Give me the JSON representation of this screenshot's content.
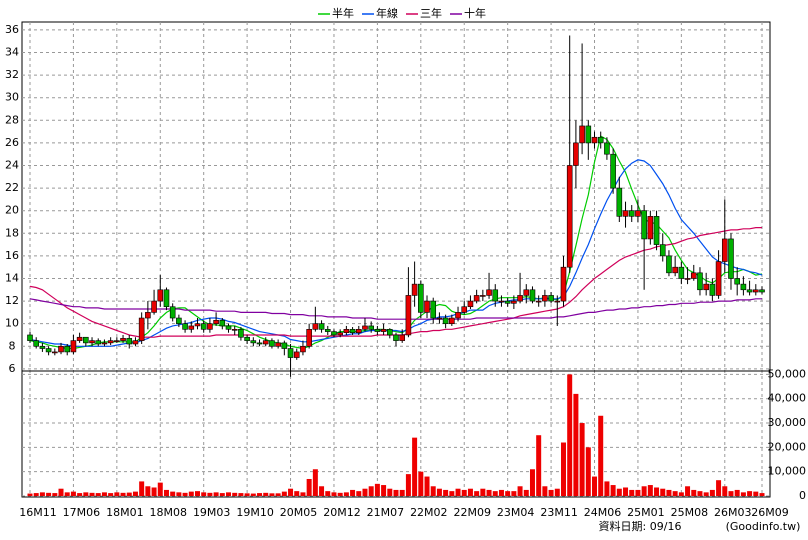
{
  "chart_data": {
    "type": "candlestick",
    "categories": [
      "16M11",
      null,
      null,
      null,
      null,
      null,
      null,
      "17M06",
      null,
      null,
      null,
      null,
      null,
      null,
      "18M01",
      null,
      null,
      null,
      null,
      null,
      null,
      "18M08",
      null,
      null,
      null,
      null,
      null,
      null,
      "19M03",
      null,
      null,
      null,
      null,
      null,
      null,
      "19M10",
      null,
      null,
      null,
      null,
      null,
      null,
      "20M05",
      null,
      null,
      null,
      null,
      null,
      null,
      "20M12",
      null,
      null,
      null,
      null,
      null,
      null,
      "21M07",
      null,
      null,
      null,
      null,
      null,
      null,
      "22M02",
      null,
      null,
      null,
      null,
      null,
      null,
      "22M09",
      null,
      null,
      null,
      null,
      null,
      null,
      "23M04",
      null,
      null,
      null,
      null,
      null,
      null,
      "23M11",
      null,
      null,
      null,
      null,
      null,
      null,
      "24M06",
      null,
      null,
      null,
      null,
      null,
      null,
      "25M01",
      null,
      null,
      null,
      null,
      null,
      null,
      "25M08",
      null,
      null,
      null,
      null,
      null,
      null,
      "26M03",
      null,
      null,
      null,
      null,
      null,
      "26M09"
    ],
    "open": [
      9,
      8.5,
      8,
      7.8,
      7.5,
      7.5,
      8,
      7.5,
      8.5,
      8.8,
      8.3,
      8.5,
      8.2,
      8.3,
      8.5,
      8.5,
      8.7,
      8.2,
      8.5,
      10.5,
      11,
      12,
      13,
      11.5,
      10.5,
      10,
      9.5,
      9.8,
      10,
      9.5,
      10,
      10.3,
      9.8,
      9.5,
      9.5,
      8.8,
      8.5,
      8.3,
      8.2,
      8.5,
      8,
      8.3,
      7.8,
      7,
      7.5,
      8,
      9.5,
      10,
      9.5,
      9.3,
      9,
      9.2,
      9.5,
      9.2,
      9.5,
      9.8,
      9.5,
      9.3,
      9.5,
      9,
      8.5,
      9,
      12.5,
      13.5,
      11,
      12,
      10.5,
      10.5,
      10,
      10.5,
      11,
      11.5,
      12,
      12.5,
      12.5,
      13,
      12,
      12,
      11.8,
      12,
      12.5,
      13,
      12,
      12,
      12.5,
      12,
      12,
      15,
      24,
      26,
      27.5,
      26,
      26.5,
      26,
      25,
      22,
      19.5,
      20,
      19.5,
      20,
      17.5,
      19.5,
      17,
      16,
      14.5,
      15,
      14,
      14,
      14.5,
      13,
      13.5,
      12.5,
      15.5,
      17.5,
      14,
      13.5,
      13,
      12.8,
      13
    ],
    "high": [
      9.3,
      8.8,
      8.3,
      8,
      7.8,
      8.3,
      8.2,
      9,
      9.2,
      8.8,
      8.8,
      8.7,
      8.6,
      8.8,
      8.8,
      9,
      9,
      8.8,
      11,
      12,
      13,
      14.3,
      13.2,
      11.8,
      10.8,
      10.3,
      10.2,
      10.5,
      10.3,
      10.5,
      11,
      10.5,
      10,
      9.8,
      9.7,
      9,
      8.8,
      8.6,
      8.8,
      8.7,
      8.6,
      8.5,
      8.2,
      7.8,
      8.5,
      10,
      11.5,
      10.3,
      9.8,
      9.5,
      9.5,
      9.8,
      9.7,
      9.8,
      10.5,
      10.2,
      9.8,
      10,
      9.6,
      9.2,
      9.5,
      15,
      15.5,
      13.8,
      12.5,
      12.3,
      11,
      10.8,
      10.8,
      11.5,
      12,
      12.5,
      13,
      13,
      14.5,
      13.5,
      12.5,
      12.3,
      12.5,
      14.5,
      13.5,
      13.3,
      12.5,
      13,
      12.8,
      12.5,
      16,
      35.5,
      28,
      34.8,
      28,
      27,
      27,
      26.5,
      25.5,
      23,
      20.8,
      20.5,
      21,
      20.5,
      20,
      20,
      18,
      16.5,
      16,
      15.5,
      15,
      15.2,
      15,
      14.5,
      14,
      16.5,
      21,
      18,
      15,
      14.2,
      13.8,
      13.5,
      13.3
    ],
    "low": [
      8.3,
      7.8,
      7.5,
      7.2,
      7.2,
      7.3,
      7.2,
      7.3,
      8.3,
      8,
      8,
      8,
      8,
      8.1,
      8.3,
      8.3,
      7.8,
      8,
      8.2,
      9.5,
      10.8,
      11.5,
      11.2,
      10.2,
      9.7,
      9.2,
      9.2,
      9.5,
      9.2,
      9.2,
      9.8,
      9.5,
      9.2,
      9,
      8.5,
      8.2,
      8,
      8,
      8,
      7.8,
      7.8,
      7.2,
      5.3,
      6.8,
      7.2,
      7.8,
      9.3,
      9.2,
      9,
      8.8,
      8.8,
      9,
      9,
      9,
      9.3,
      9.2,
      9,
      9,
      8.7,
      8,
      8.3,
      8.8,
      11.5,
      10.5,
      10.5,
      10,
      10,
      9.6,
      9.8,
      10.2,
      10.8,
      11.3,
      11.8,
      12,
      12.2,
      11.5,
      11.5,
      11.5,
      11.3,
      11.8,
      11.8,
      11.8,
      11.5,
      11.5,
      11.8,
      9.8,
      11.5,
      14.5,
      22,
      25,
      24.5,
      25.5,
      25.5,
      24.5,
      21.5,
      19,
      18.5,
      19,
      19,
      13,
      17,
      16.5,
      15.5,
      14.2,
      14.2,
      13.5,
      13.5,
      13.8,
      12.5,
      12.5,
      12,
      12.2,
      14.5,
      13,
      12.5,
      12.5,
      12.5,
      12.5,
      12.6
    ],
    "close": [
      8.5,
      8,
      7.8,
      7.5,
      7.5,
      8,
      7.5,
      8.5,
      8.8,
      8.3,
      8.5,
      8.2,
      8.3,
      8.5,
      8.5,
      8.7,
      8.2,
      8.5,
      10.5,
      11,
      12,
      13,
      11.5,
      10.5,
      10,
      9.5,
      9.8,
      10,
      9.5,
      10,
      10.3,
      9.8,
      9.5,
      9.5,
      8.8,
      8.5,
      8.3,
      8.2,
      8.5,
      8,
      8.3,
      7.8,
      7,
      7.5,
      8,
      9.5,
      10,
      9.5,
      9.3,
      9,
      9.2,
      9.5,
      9.2,
      9.5,
      9.8,
      9.5,
      9.3,
      9.5,
      9,
      8.5,
      9,
      12.5,
      13.5,
      11,
      12,
      10.5,
      10.5,
      10,
      10.5,
      11,
      11.5,
      12,
      12.5,
      12.5,
      13,
      12,
      12,
      11.8,
      12,
      12.5,
      13,
      12,
      12,
      12.5,
      12,
      12,
      15,
      24,
      26,
      27.5,
      26,
      26.5,
      26,
      25,
      22,
      19.5,
      20,
      19.5,
      20,
      17.5,
      19.5,
      17,
      16,
      14.5,
      15,
      14,
      14,
      14.5,
      13,
      13.5,
      12.5,
      15.5,
      17.5,
      14,
      13.5,
      13,
      12.8,
      13,
      12.8
    ],
    "up_color": "#e60000",
    "down_color": "#00b000",
    "ylim": [
      5.9,
      36.7
    ],
    "yticks": [
      6,
      8,
      10,
      12,
      14,
      16,
      18,
      20,
      22,
      24,
      26,
      28,
      30,
      32,
      34,
      36
    ],
    "grid": true,
    "lines": [
      {
        "name": "半年",
        "color": "#00cc00",
        "values": [
          8.5,
          8.4,
          8.3,
          8.1,
          8,
          7.9,
          7.8,
          7.8,
          7.9,
          8,
          8.1,
          8.3,
          8.4,
          8.4,
          8.4,
          8.4,
          8.4,
          8.4,
          8.8,
          9.2,
          9.8,
          10.5,
          11,
          11.3,
          11.4,
          11.4,
          11,
          10.6,
          10.2,
          9.9,
          9.9,
          9.8,
          9.8,
          9.8,
          9.6,
          9.4,
          9.1,
          8.8,
          8.6,
          8.4,
          8.3,
          8.2,
          8,
          7.9,
          7.8,
          8,
          8.3,
          8.5,
          8.8,
          9.1,
          9.3,
          9.3,
          9.3,
          9.3,
          9.4,
          9.4,
          9.5,
          9.5,
          9.4,
          9.3,
          9.2,
          9.6,
          10.3,
          10.7,
          11.1,
          11.5,
          11.7,
          11.6,
          11.1,
          10.9,
          10.8,
          10.9,
          11.2,
          11.6,
          12,
          12.2,
          12.3,
          12.3,
          12.3,
          12.3,
          12.4,
          12.3,
          12.2,
          12.3,
          12.2,
          12.1,
          12.6,
          14.6,
          16.9,
          19.3,
          21.4,
          24.3,
          26.6,
          26.3,
          25.5,
          24.4,
          23.4,
          21.9,
          20.5,
          19.2,
          19,
          18.8,
          18.2,
          17.6,
          16.5,
          15.6,
          14.8,
          14.5,
          14.2,
          13.8,
          13.6,
          14,
          14.5,
          14.6,
          14.6,
          14.8,
          14.6,
          14.3,
          14.4
        ]
      },
      {
        "name": "年線",
        "color": "#0050f0",
        "values": [
          8.6,
          8.5,
          8.4,
          8.3,
          8.2,
          8.2,
          8.1,
          8,
          8,
          8,
          8,
          8,
          8,
          8,
          8.1,
          8.2,
          8.3,
          8.3,
          8.5,
          8.7,
          9,
          9.3,
          9.6,
          9.8,
          9.9,
          10,
          10.1,
          10.3,
          10.4,
          10.5,
          10.5,
          10.4,
          10.2,
          10.1,
          9.9,
          9.7,
          9.5,
          9.3,
          9.2,
          9.1,
          9,
          8.9,
          8.6,
          8.5,
          8.4,
          8.4,
          8.5,
          8.6,
          8.7,
          8.8,
          8.9,
          9,
          9.1,
          9.1,
          9.3,
          9.4,
          9.4,
          9.4,
          9.4,
          9.4,
          9.3,
          9.5,
          9.8,
          10,
          10.3,
          10.4,
          10.6,
          10.6,
          10.7,
          10.9,
          11,
          11.2,
          11.2,
          11.2,
          11.6,
          11.8,
          11.9,
          12,
          12.1,
          12.1,
          12.2,
          12.2,
          12.2,
          12.2,
          12.2,
          12.2,
          12.4,
          13.3,
          14.5,
          15.8,
          17,
          18.4,
          19.7,
          20.9,
          21.9,
          22.9,
          23.7,
          24.2,
          24.5,
          24.4,
          24,
          23.2,
          22.4,
          21.4,
          20.2,
          19.2,
          18.6,
          18,
          17.3,
          16.6,
          15.9,
          15.5,
          15.3,
          15.1,
          14.9,
          14.8,
          14.6,
          14.5,
          14.3
        ]
      },
      {
        "name": "三年",
        "color": "#d0005a",
        "values": [
          13.3,
          13.2,
          13,
          12.6,
          12.2,
          11.8,
          11.4,
          11.1,
          10.8,
          10.5,
          10.2,
          10,
          9.8,
          9.6,
          9.4,
          9.2,
          9,
          8.9,
          8.8,
          8.8,
          8.8,
          8.9,
          8.9,
          8.9,
          8.9,
          8.9,
          8.9,
          8.9,
          8.9,
          8.9,
          9,
          9,
          9,
          9,
          9,
          9,
          9,
          9,
          9,
          9,
          9,
          9,
          8.9,
          8.9,
          8.9,
          8.9,
          8.9,
          8.9,
          8.9,
          8.9,
          8.9,
          8.9,
          8.9,
          8.9,
          8.9,
          8.9,
          9,
          9,
          9,
          9,
          9,
          9.1,
          9.2,
          9.3,
          9.3,
          9.4,
          9.4,
          9.5,
          9.5,
          9.6,
          9.7,
          9.8,
          9.9,
          10,
          10.1,
          10.2,
          10.3,
          10.4,
          10.5,
          10.7,
          10.8,
          10.9,
          11,
          11.1,
          11.2,
          11.3,
          11.5,
          11.9,
          12.4,
          13,
          13.5,
          14,
          14.4,
          14.8,
          15.2,
          15.6,
          15.9,
          16.1,
          16.3,
          16.5,
          16.6,
          16.8,
          16.9,
          17,
          17.1,
          17.3,
          17.5,
          17.6,
          17.8,
          17.9,
          18,
          18.1,
          18.2,
          18.3,
          18.3,
          18.4,
          18.4,
          18.5,
          18.5
        ]
      },
      {
        "name": "十年",
        "color": "#8000a0",
        "values": [
          12.2,
          12.1,
          12,
          11.9,
          11.8,
          11.7,
          11.6,
          11.5,
          11.5,
          11.4,
          11.4,
          11.4,
          11.3,
          11.3,
          11.3,
          11.3,
          11.3,
          11.3,
          11.3,
          11.3,
          11.3,
          11.3,
          11.3,
          11.3,
          11.3,
          11.2,
          11.2,
          11.2,
          11.2,
          11.2,
          11.1,
          11.1,
          11.1,
          11.1,
          11,
          11,
          11,
          11,
          11,
          10.9,
          10.9,
          10.9,
          10.8,
          10.8,
          10.8,
          10.7,
          10.7,
          10.7,
          10.6,
          10.6,
          10.6,
          10.6,
          10.5,
          10.5,
          10.5,
          10.5,
          10.4,
          10.4,
          10.4,
          10.4,
          10.4,
          10.4,
          10.4,
          10.4,
          10.4,
          10.4,
          10.4,
          10.4,
          10.4,
          10.4,
          10.4,
          10.4,
          10.5,
          10.5,
          10.5,
          10.5,
          10.5,
          10.5,
          10.5,
          10.5,
          10.5,
          10.5,
          10.5,
          10.5,
          10.5,
          10.6,
          10.6,
          10.7,
          10.8,
          10.9,
          11,
          11,
          11.1,
          11.2,
          11.2,
          11.3,
          11.3,
          11.4,
          11.4,
          11.5,
          11.5,
          11.6,
          11.6,
          11.7,
          11.7,
          11.8,
          11.8,
          11.8,
          11.9,
          11.9,
          11.9,
          12,
          12,
          12,
          12.1,
          12.1,
          12.1,
          12.2,
          12.2
        ]
      }
    ],
    "volume": {
      "color": "#ee0000",
      "values": [
        1000,
        1200,
        1500,
        1300,
        1200,
        3000,
        1500,
        1800,
        1200,
        1500,
        1300,
        1200,
        1500,
        1200,
        1500,
        1300,
        1400,
        1800,
        6000,
        4000,
        3500,
        5500,
        2500,
        1800,
        1500,
        1300,
        1800,
        2000,
        1500,
        1300,
        1500,
        1200,
        1500,
        1300,
        1200,
        1100,
        1000,
        1200,
        1300,
        1100,
        1100,
        1800,
        3000,
        2000,
        1500,
        7000,
        11000,
        4000,
        2000,
        1500,
        1300,
        1500,
        2500,
        2000,
        3000,
        4000,
        5000,
        4500,
        3000,
        2500,
        2500,
        9000,
        24000,
        10000,
        8000,
        4000,
        3000,
        2500,
        2000,
        3000,
        2500,
        3000,
        2000,
        3000,
        2500,
        2000,
        2500,
        2000,
        2000,
        4000,
        2500,
        11000,
        25000,
        4000,
        2500,
        3000,
        22000,
        50000,
        42000,
        30000,
        20000,
        8000,
        33000,
        6000,
        4500,
        3000,
        3500,
        2500,
        2500,
        4000,
        4500,
        3500,
        3000,
        2500,
        2000,
        1500,
        4000,
        2500,
        2000,
        1500,
        2500,
        6500,
        4000,
        2000,
        2500,
        1500,
        2000,
        1800,
        1200
      ],
      "ylim": [
        0,
        51000
      ],
      "yticks": [
        0,
        {
          "value": 10000,
          "label": "10,000"
        },
        {
          "value": 20000,
          "label": "20,000"
        },
        {
          "value": 30000,
          "label": "30,000"
        },
        {
          "value": 40000,
          "label": "40,000"
        },
        {
          "value": 50000,
          "label": "50,000"
        }
      ]
    },
    "source_note": "資料日期: 09/16",
    "source": "(Goodinfo.tw)"
  }
}
